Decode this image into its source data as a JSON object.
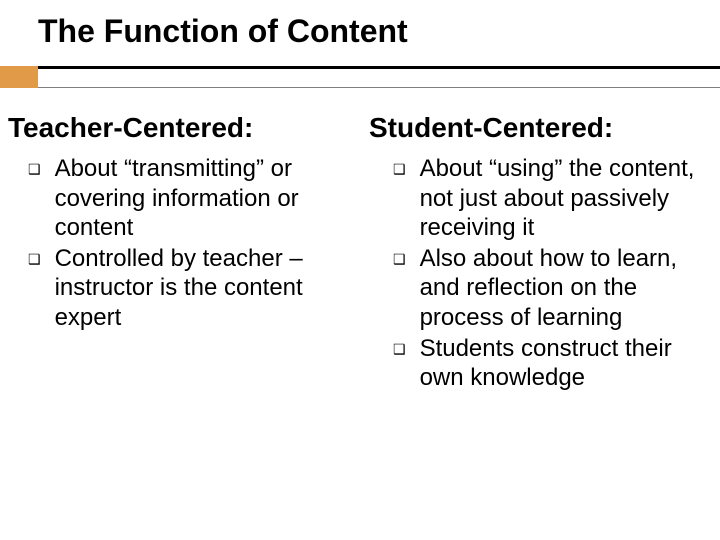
{
  "title": "The Function of Content",
  "accent_color": "#e19a47",
  "columns": {
    "left": {
      "heading": "Teacher-Centered:",
      "items": [
        "About “transmitting” or covering information or content",
        "Controlled by teacher – instructor is the content expert"
      ]
    },
    "right": {
      "heading": "Student-Centered:",
      "items": [
        "About “using” the content, not just about passively receiving it",
        "Also about how to learn, and reflection on the process of learning",
        "Students construct their own knowledge"
      ]
    }
  },
  "bullet_glyph": "❑",
  "fonts": {
    "title_size": 32,
    "heading_size": 28,
    "body_size": 24
  }
}
